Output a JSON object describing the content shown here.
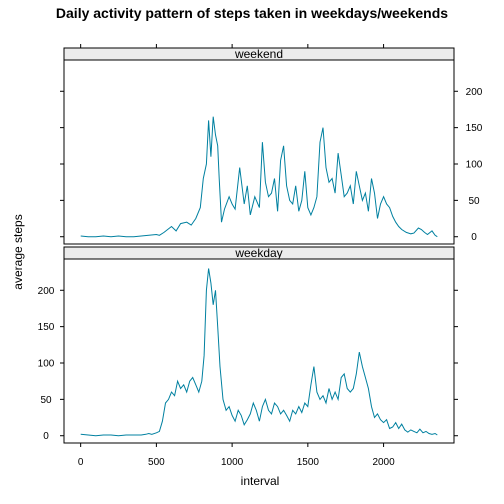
{
  "chart_data": {
    "type": "line",
    "title": "Daily activity pattern of steps taken in weekdays/weekends",
    "xlabel": "interval",
    "ylabel": "average steps",
    "xlim": [
      0,
      2355
    ],
    "ylim": [
      0,
      230
    ],
    "x_ticks": [
      0,
      500,
      1000,
      1500,
      2000
    ],
    "y_ticks": [
      0,
      50,
      100,
      150,
      200
    ],
    "color": "#0080A0",
    "panels": [
      {
        "name": "weekend",
        "points": [
          [
            0,
            1
          ],
          [
            50,
            0
          ],
          [
            100,
            0
          ],
          [
            150,
            1
          ],
          [
            200,
            0
          ],
          [
            250,
            1
          ],
          [
            300,
            0
          ],
          [
            350,
            0
          ],
          [
            400,
            1
          ],
          [
            450,
            2
          ],
          [
            500,
            3
          ],
          [
            520,
            2
          ],
          [
            550,
            6
          ],
          [
            600,
            14
          ],
          [
            630,
            8
          ],
          [
            660,
            18
          ],
          [
            700,
            20
          ],
          [
            730,
            16
          ],
          [
            760,
            25
          ],
          [
            790,
            40
          ],
          [
            810,
            80
          ],
          [
            830,
            100
          ],
          [
            845,
            160
          ],
          [
            860,
            110
          ],
          [
            875,
            165
          ],
          [
            890,
            140
          ],
          [
            905,
            125
          ],
          [
            915,
            80
          ],
          [
            930,
            20
          ],
          [
            950,
            38
          ],
          [
            980,
            55
          ],
          [
            1000,
            45
          ],
          [
            1020,
            38
          ],
          [
            1050,
            95
          ],
          [
            1080,
            45
          ],
          [
            1100,
            70
          ],
          [
            1120,
            30
          ],
          [
            1150,
            55
          ],
          [
            1180,
            40
          ],
          [
            1200,
            130
          ],
          [
            1220,
            75
          ],
          [
            1240,
            55
          ],
          [
            1260,
            60
          ],
          [
            1280,
            80
          ],
          [
            1300,
            35
          ],
          [
            1320,
            105
          ],
          [
            1340,
            125
          ],
          [
            1360,
            70
          ],
          [
            1380,
            50
          ],
          [
            1400,
            45
          ],
          [
            1420,
            70
          ],
          [
            1440,
            35
          ],
          [
            1460,
            50
          ],
          [
            1480,
            90
          ],
          [
            1500,
            40
          ],
          [
            1520,
            30
          ],
          [
            1540,
            40
          ],
          [
            1560,
            55
          ],
          [
            1580,
            130
          ],
          [
            1600,
            150
          ],
          [
            1620,
            95
          ],
          [
            1640,
            75
          ],
          [
            1660,
            80
          ],
          [
            1680,
            60
          ],
          [
            1700,
            115
          ],
          [
            1720,
            85
          ],
          [
            1740,
            55
          ],
          [
            1760,
            60
          ],
          [
            1780,
            70
          ],
          [
            1800,
            45
          ],
          [
            1820,
            90
          ],
          [
            1840,
            70
          ],
          [
            1860,
            50
          ],
          [
            1880,
            60
          ],
          [
            1900,
            35
          ],
          [
            1920,
            80
          ],
          [
            1940,
            60
          ],
          [
            1960,
            25
          ],
          [
            1980,
            45
          ],
          [
            2000,
            55
          ],
          [
            2020,
            45
          ],
          [
            2040,
            40
          ],
          [
            2060,
            28
          ],
          [
            2080,
            20
          ],
          [
            2100,
            14
          ],
          [
            2120,
            10
          ],
          [
            2150,
            6
          ],
          [
            2180,
            4
          ],
          [
            2200,
            5
          ],
          [
            2230,
            12
          ],
          [
            2250,
            10
          ],
          [
            2270,
            6
          ],
          [
            2290,
            3
          ],
          [
            2320,
            8
          ],
          [
            2340,
            2
          ],
          [
            2355,
            0
          ]
        ]
      },
      {
        "name": "weekday",
        "points": [
          [
            0,
            2
          ],
          [
            50,
            1
          ],
          [
            100,
            0
          ],
          [
            150,
            1
          ],
          [
            200,
            1
          ],
          [
            250,
            0
          ],
          [
            300,
            1
          ],
          [
            350,
            1
          ],
          [
            400,
            1
          ],
          [
            430,
            2
          ],
          [
            450,
            3
          ],
          [
            470,
            2
          ],
          [
            500,
            4
          ],
          [
            520,
            6
          ],
          [
            540,
            20
          ],
          [
            560,
            45
          ],
          [
            580,
            50
          ],
          [
            600,
            60
          ],
          [
            620,
            55
          ],
          [
            640,
            75
          ],
          [
            660,
            65
          ],
          [
            680,
            70
          ],
          [
            700,
            60
          ],
          [
            720,
            75
          ],
          [
            740,
            80
          ],
          [
            760,
            70
          ],
          [
            780,
            60
          ],
          [
            800,
            75
          ],
          [
            815,
            110
          ],
          [
            830,
            200
          ],
          [
            845,
            230
          ],
          [
            860,
            210
          ],
          [
            875,
            180
          ],
          [
            890,
            200
          ],
          [
            905,
            150
          ],
          [
            920,
            95
          ],
          [
            940,
            50
          ],
          [
            960,
            35
          ],
          [
            980,
            40
          ],
          [
            1000,
            28
          ],
          [
            1020,
            20
          ],
          [
            1040,
            35
          ],
          [
            1060,
            28
          ],
          [
            1080,
            15
          ],
          [
            1100,
            22
          ],
          [
            1120,
            30
          ],
          [
            1140,
            45
          ],
          [
            1160,
            35
          ],
          [
            1180,
            20
          ],
          [
            1200,
            40
          ],
          [
            1220,
            50
          ],
          [
            1240,
            35
          ],
          [
            1260,
            30
          ],
          [
            1280,
            45
          ],
          [
            1300,
            40
          ],
          [
            1320,
            30
          ],
          [
            1340,
            35
          ],
          [
            1360,
            28
          ],
          [
            1380,
            20
          ],
          [
            1400,
            35
          ],
          [
            1420,
            30
          ],
          [
            1440,
            40
          ],
          [
            1460,
            32
          ],
          [
            1480,
            45
          ],
          [
            1500,
            40
          ],
          [
            1520,
            70
          ],
          [
            1540,
            95
          ],
          [
            1560,
            60
          ],
          [
            1580,
            50
          ],
          [
            1600,
            55
          ],
          [
            1620,
            45
          ],
          [
            1640,
            65
          ],
          [
            1660,
            50
          ],
          [
            1680,
            60
          ],
          [
            1700,
            50
          ],
          [
            1720,
            80
          ],
          [
            1740,
            85
          ],
          [
            1760,
            65
          ],
          [
            1780,
            60
          ],
          [
            1800,
            65
          ],
          [
            1820,
            85
          ],
          [
            1840,
            115
          ],
          [
            1860,
            95
          ],
          [
            1880,
            80
          ],
          [
            1900,
            65
          ],
          [
            1920,
            40
          ],
          [
            1940,
            25
          ],
          [
            1960,
            30
          ],
          [
            1980,
            22
          ],
          [
            2000,
            18
          ],
          [
            2020,
            22
          ],
          [
            2040,
            10
          ],
          [
            2060,
            12
          ],
          [
            2080,
            18
          ],
          [
            2100,
            10
          ],
          [
            2120,
            16
          ],
          [
            2140,
            8
          ],
          [
            2160,
            5
          ],
          [
            2180,
            8
          ],
          [
            2200,
            6
          ],
          [
            2220,
            4
          ],
          [
            2240,
            9
          ],
          [
            2260,
            4
          ],
          [
            2280,
            6
          ],
          [
            2300,
            3
          ],
          [
            2320,
            2
          ],
          [
            2340,
            3
          ],
          [
            2355,
            1
          ]
        ]
      }
    ]
  }
}
